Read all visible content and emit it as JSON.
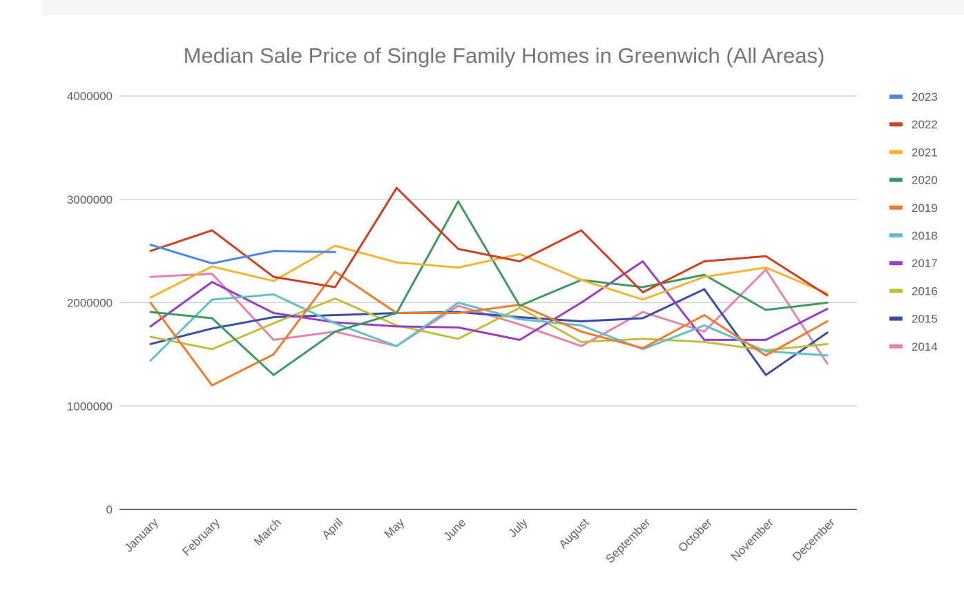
{
  "chart_data": {
    "type": "line",
    "title": "Median Sale Price of Single Family Homes in Greenwich (All Areas)",
    "xlabel": "",
    "ylabel": "",
    "ylim": [
      0,
      4000000
    ],
    "yticks": [
      "0",
      "1000000",
      "2000000",
      "3000000",
      "4000000"
    ],
    "categories": [
      "January",
      "February",
      "March",
      "April",
      "May",
      "June",
      "July",
      "August",
      "September",
      "October",
      "November",
      "December"
    ],
    "legend_position": "right",
    "series": [
      {
        "name": "2023",
        "color": "#4a86e8",
        "values": [
          2560000,
          2380000,
          2500000,
          2490000,
          null,
          null,
          null,
          null,
          null,
          null,
          null,
          null
        ]
      },
      {
        "name": "2022",
        "color": "#cc4125",
        "values": [
          2500000,
          2700000,
          2250000,
          2150000,
          3110000,
          2520000,
          2400000,
          2700000,
          2100000,
          2400000,
          2450000,
          2070000
        ]
      },
      {
        "name": "2021",
        "color": "#f1b531",
        "values": [
          2050000,
          2350000,
          2210000,
          2550000,
          2390000,
          2340000,
          2470000,
          2220000,
          2030000,
          2250000,
          2340000,
          2090000
        ]
      },
      {
        "name": "2020",
        "color": "#3d9a5e",
        "values": [
          1910000,
          1850000,
          1300000,
          1720000,
          1900000,
          2980000,
          1970000,
          2220000,
          2150000,
          2270000,
          1930000,
          2000000
        ]
      },
      {
        "name": "2019",
        "color": "#f07b2e",
        "values": [
          2000000,
          1200000,
          1500000,
          2300000,
          1900000,
          1900000,
          1980000,
          1720000,
          1560000,
          1880000,
          1490000,
          1820000
        ]
      },
      {
        "name": "2018",
        "color": "#63bfc9",
        "values": [
          1440000,
          2030000,
          2080000,
          1800000,
          1580000,
          2000000,
          1840000,
          1780000,
          1550000,
          1780000,
          1530000,
          1490000
        ]
      },
      {
        "name": "2017",
        "color": "#9a3dc4",
        "values": [
          1770000,
          2200000,
          1900000,
          1810000,
          1770000,
          1760000,
          1640000,
          2000000,
          2400000,
          1640000,
          1640000,
          1940000
        ]
      },
      {
        "name": "2016",
        "color": "#bfbf3b",
        "values": [
          1670000,
          1550000,
          1800000,
          2040000,
          1780000,
          1650000,
          1950000,
          1620000,
          1650000,
          1620000,
          1540000,
          1600000
        ]
      },
      {
        "name": "2015",
        "color": "#3b4ba8",
        "values": [
          1600000,
          1750000,
          1860000,
          1880000,
          1900000,
          1910000,
          1860000,
          1820000,
          1850000,
          2130000,
          1300000,
          1710000
        ]
      },
      {
        "name": "2014",
        "color": "#e882ad",
        "values": [
          2250000,
          2280000,
          1640000,
          1720000,
          1580000,
          1970000,
          1790000,
          1580000,
          1910000,
          1720000,
          2320000,
          1410000
        ]
      }
    ]
  }
}
